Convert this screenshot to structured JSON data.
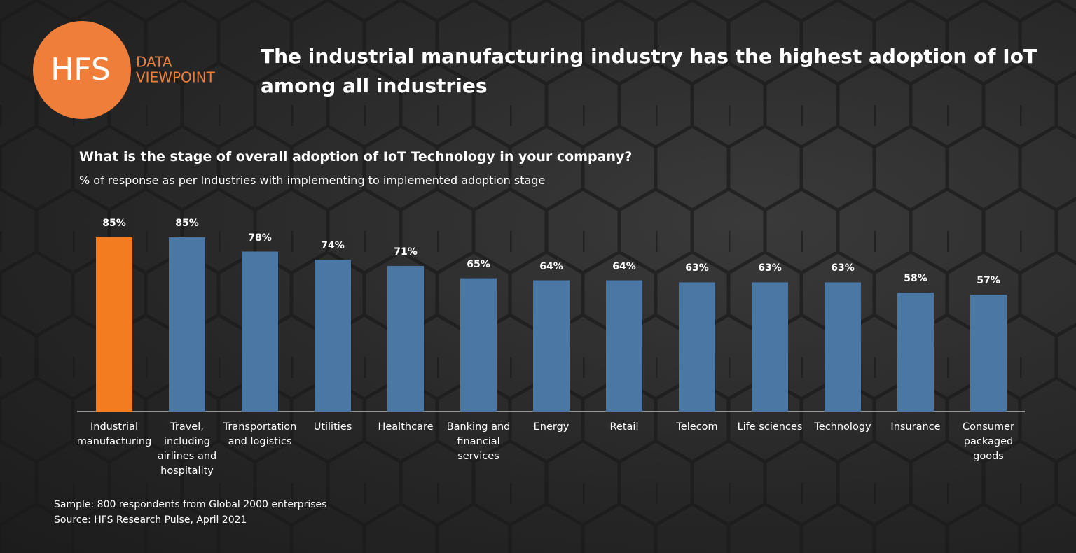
{
  "logo": {
    "mark": "HFS",
    "line1": "DATA",
    "line2": "VIEWPOINT"
  },
  "chart_data": {
    "type": "bar",
    "title": "The industrial manufacturing industry has the highest adoption of IoT among all industries",
    "subtitle": "What is the stage of overall adoption of IoT Technology in your company?",
    "description": "% of response as per Industries with implementing to implemented adoption stage",
    "categories": [
      "Industrial manufacturing",
      "Travel, including airlines and hospitality",
      "Transportation and logistics",
      "Utilities",
      "Healthcare",
      "Banking and financial services",
      "Energy",
      "Retail",
      "Telecom",
      "Life sciences",
      "Technology",
      "Insurance",
      "Consumer packaged goods"
    ],
    "values": [
      85,
      85,
      78,
      74,
      71,
      65,
      64,
      64,
      63,
      63,
      63,
      58,
      57
    ],
    "value_labels": [
      "85%",
      "85%",
      "78%",
      "74%",
      "71%",
      "65%",
      "64%",
      "64%",
      "63%",
      "63%",
      "63%",
      "58%",
      "57%"
    ],
    "colors": [
      "#f47c20",
      "#4a77a3",
      "#4a77a3",
      "#4a77a3",
      "#4a77a3",
      "#4a77a3",
      "#4a77a3",
      "#4a77a3",
      "#4a77a3",
      "#4a77a3",
      "#4a77a3",
      "#4a77a3",
      "#4a77a3"
    ],
    "notes": [
      "Sample: 800 respondents from Global 2000 enterprises",
      "Source: HFS Research Pulse, April 2021"
    ]
  }
}
